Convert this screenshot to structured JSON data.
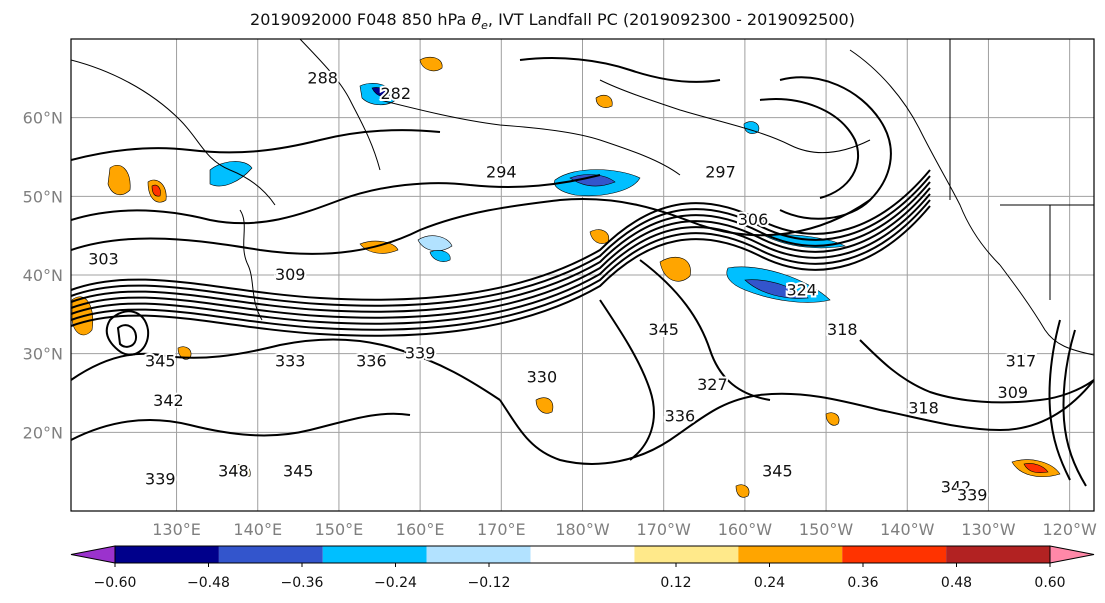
{
  "title": {
    "prefix": "2019092000 F048 850 hPa ",
    "theta_symbol": "θ",
    "theta_sub": "e",
    "suffix": ", IVT Landfall PC (2019092300 - 2019092500)"
  },
  "map": {
    "projection": "PlateCarree",
    "lon_range": [
      117,
      243
    ],
    "lat_range": [
      10,
      70
    ],
    "grid": true,
    "lon_ticks": [
      {
        "lon": 130,
        "label": "130°E"
      },
      {
        "lon": 140,
        "label": "140°E"
      },
      {
        "lon": 150,
        "label": "150°E"
      },
      {
        "lon": 160,
        "label": "160°E"
      },
      {
        "lon": 170,
        "label": "170°E"
      },
      {
        "lon": 180,
        "label": "180°W"
      },
      {
        "lon": 190,
        "label": "170°W"
      },
      {
        "lon": 200,
        "label": "160°W"
      },
      {
        "lon": 210,
        "label": "150°W"
      },
      {
        "lon": 220,
        "label": "140°W"
      },
      {
        "lon": 230,
        "label": "130°W"
      },
      {
        "lon": 240,
        "label": "120°W"
      }
    ],
    "lat_ticks": [
      {
        "lat": 20,
        "label": "20°N"
      },
      {
        "lat": 30,
        "label": "30°N"
      },
      {
        "lat": 40,
        "label": "40°N"
      },
      {
        "lat": 50,
        "label": "50°N"
      },
      {
        "lat": 60,
        "label": "60°N"
      }
    ],
    "contour_labels": [
      {
        "text": "288",
        "lon": 148,
        "lat": 65
      },
      {
        "text": "282",
        "lon": 157,
        "lat": 63
      },
      {
        "text": "294",
        "lon": 170,
        "lat": 53
      },
      {
        "text": "297",
        "lon": 197,
        "lat": 53
      },
      {
        "text": "306",
        "lon": 201,
        "lat": 47
      },
      {
        "text": "309",
        "lon": 144,
        "lat": 40
      },
      {
        "text": "303",
        "lon": 121,
        "lat": 42
      },
      {
        "text": "324",
        "lon": 207,
        "lat": 38
      },
      {
        "text": "318",
        "lon": 212,
        "lat": 33
      },
      {
        "text": "345",
        "lon": 190,
        "lat": 33
      },
      {
        "text": "333",
        "lon": 144,
        "lat": 29
      },
      {
        "text": "336",
        "lon": 154,
        "lat": 29
      },
      {
        "text": "339",
        "lon": 160,
        "lat": 30
      },
      {
        "text": "330",
        "lon": 175,
        "lat": 27
      },
      {
        "text": "327",
        "lon": 196,
        "lat": 26
      },
      {
        "text": "342",
        "lon": 129,
        "lat": 24
      },
      {
        "text": "345",
        "lon": 128,
        "lat": 29
      },
      {
        "text": "318",
        "lon": 222,
        "lat": 23
      },
      {
        "text": "309",
        "lon": 233,
        "lat": 25
      },
      {
        "text": "317",
        "lon": 234,
        "lat": 29
      },
      {
        "text": "336",
        "lon": 192,
        "lat": 22
      },
      {
        "text": "345",
        "lon": 204,
        "lat": 15
      },
      {
        "text": "345",
        "lon": 145,
        "lat": 15
      },
      {
        "text": "348",
        "lon": 137,
        "lat": 15
      },
      {
        "text": "339",
        "lon": 128,
        "lat": 14
      },
      {
        "text": "342",
        "lon": 226,
        "lat": 13
      },
      {
        "text": "339",
        "lon": 228,
        "lat": 12
      }
    ]
  },
  "colorbar": {
    "colors": [
      "#9b32cd",
      "#00008b",
      "#3355cc",
      "#00bfff",
      "#b2e2ff",
      "#ffffff",
      "#ffe98a",
      "#ffa500",
      "#ff3300",
      "#b22222",
      "#ff88a8"
    ],
    "bounds": [
      -0.72,
      -0.6,
      -0.48,
      -0.36,
      -0.24,
      -0.12,
      0.12,
      0.24,
      0.36,
      0.48,
      0.6,
      0.72
    ],
    "tick_values": [
      -0.6,
      -0.48,
      -0.36,
      -0.24,
      -0.12,
      0.12,
      0.24,
      0.36,
      0.48,
      0.6
    ],
    "tick_labels": [
      "−0.60",
      "−0.48",
      "−0.36",
      "−0.24",
      "−0.12",
      "0.12",
      "0.24",
      "0.36",
      "0.48",
      "0.60"
    ],
    "extend": "both"
  },
  "fields": {
    "contour_color": "#000000",
    "grid_color": "#a0a0a0"
  }
}
